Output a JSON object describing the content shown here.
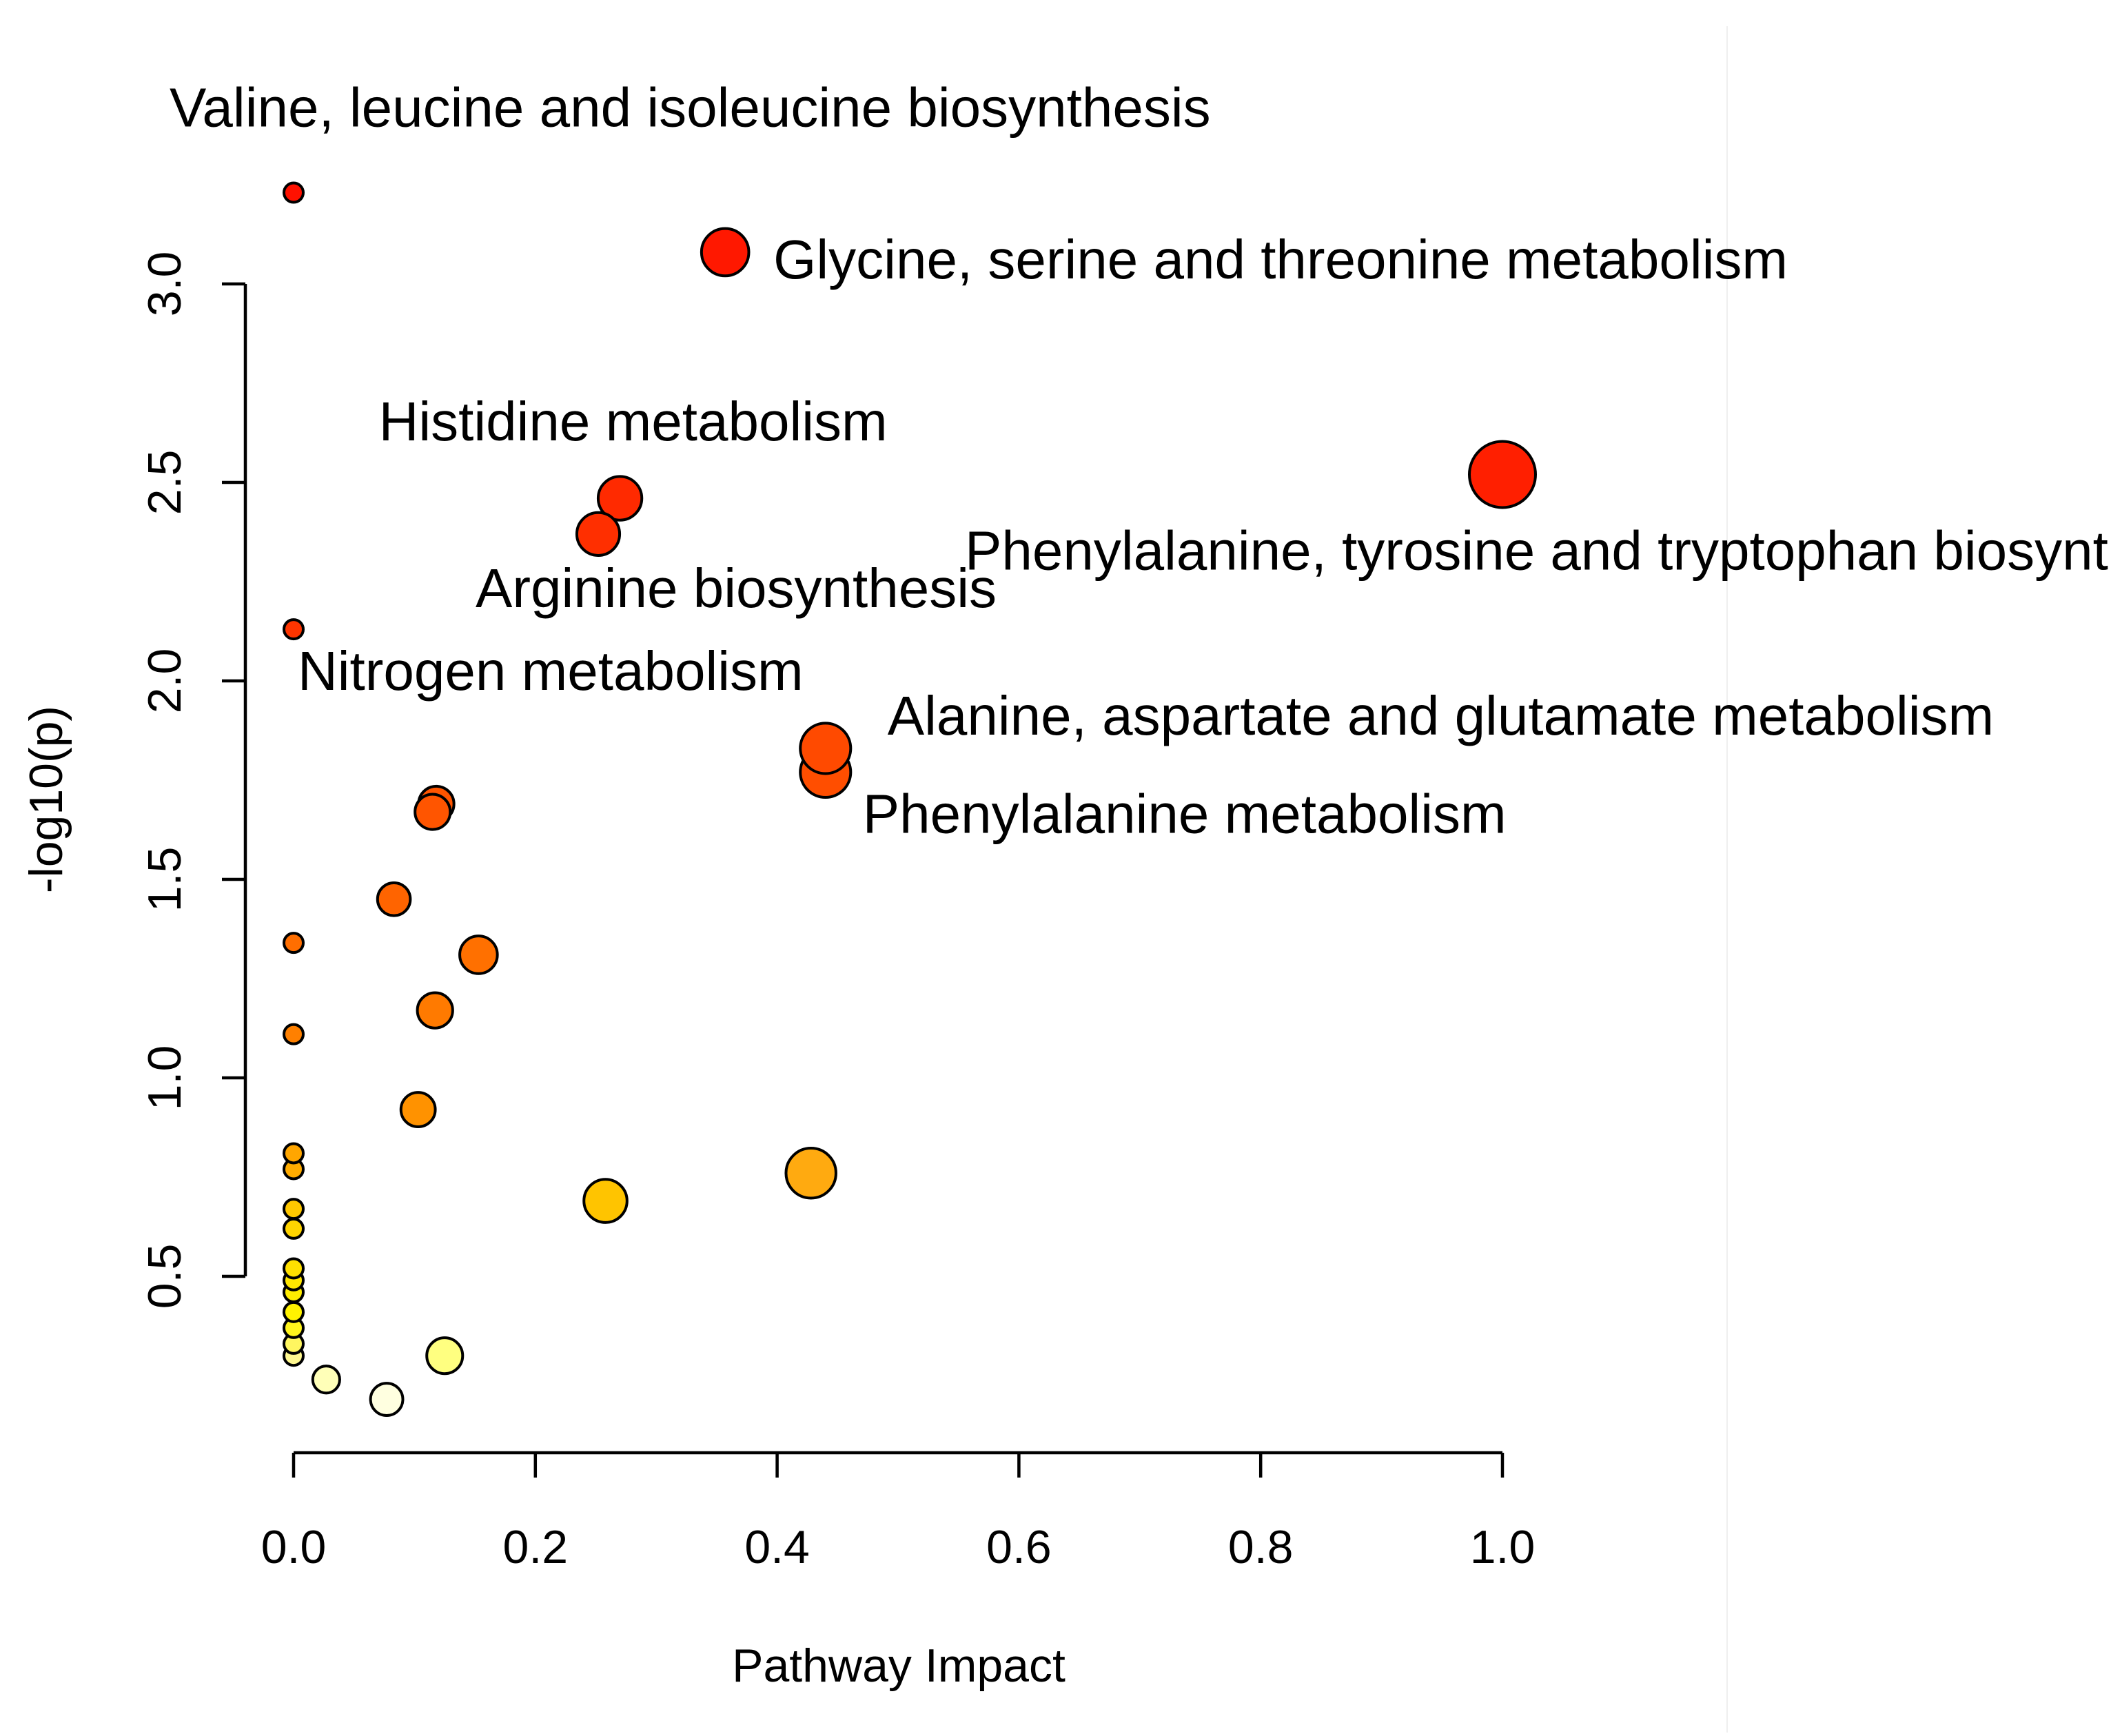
{
  "chart_data": {
    "type": "scatter",
    "xlabel": "Pathway Impact",
    "ylabel": "-log10(p)",
    "xlim": [
      0,
      1
    ],
    "ylim": [
      0.15,
      3.25
    ],
    "x_ticks": [
      "0.0",
      "0.2",
      "0.4",
      "0.6",
      "0.8",
      "1.0"
    ],
    "x_tick_values": [
      0,
      0.2,
      0.4,
      0.6,
      0.8,
      1.0
    ],
    "y_ticks": [
      "0.5",
      "1.0",
      "1.5",
      "2.0",
      "2.5",
      "3.0"
    ],
    "y_tick_values": [
      0.5,
      1.0,
      1.5,
      2.0,
      2.5,
      3.0
    ],
    "size_encodes": "Pathway Impact",
    "color_encodes": "-log10(p)",
    "points": [
      {
        "x": 0.0,
        "y": 3.23,
        "label": "Valine, leucine and isoleucine biosynthesis",
        "color": "#ff1100"
      },
      {
        "x": 0.357,
        "y": 3.08,
        "label": "Glycine, serine and threonine metabolism",
        "color": "#ff1800"
      },
      {
        "x": 1.0,
        "y": 2.52,
        "label": "Phenylalanine, tyrosine and tryptophan biosynthesis",
        "color": "#ff1f00"
      },
      {
        "x": 0.27,
        "y": 2.46,
        "label": "Histidine metabolism",
        "color": "#ff2a00"
      },
      {
        "x": 0.252,
        "y": 2.37,
        "label": "Arginine biosynthesis",
        "color": "#ff2f00"
      },
      {
        "x": 0.0,
        "y": 2.13,
        "label": "Nitrogen metabolism",
        "color": "#ff3500"
      },
      {
        "x": 0.44,
        "y": 1.83,
        "label": "Alanine, aspartate and glutamate metabolism",
        "color": "#ff4a00"
      },
      {
        "x": 0.44,
        "y": 1.77,
        "label": "Phenylalanine metabolism",
        "color": "#ff4e00"
      },
      {
        "x": 0.118,
        "y": 1.69,
        "label": "",
        "color": "#ff5500"
      },
      {
        "x": 0.115,
        "y": 1.67,
        "label": "",
        "color": "#ff5500"
      },
      {
        "x": 0.083,
        "y": 1.45,
        "label": "",
        "color": "#ff6400"
      },
      {
        "x": 0.0,
        "y": 1.34,
        "label": "",
        "color": "#ff6e00"
      },
      {
        "x": 0.153,
        "y": 1.31,
        "label": "",
        "color": "#ff7000"
      },
      {
        "x": 0.117,
        "y": 1.17,
        "label": "",
        "color": "#ff7a00"
      },
      {
        "x": 0.0,
        "y": 1.11,
        "label": "",
        "color": "#ff8000"
      },
      {
        "x": 0.103,
        "y": 0.92,
        "label": "",
        "color": "#ff9200"
      },
      {
        "x": 0.0,
        "y": 0.81,
        "label": "",
        "color": "#ffa600"
      },
      {
        "x": 0.0,
        "y": 0.77,
        "label": "",
        "color": "#ffac00"
      },
      {
        "x": 0.428,
        "y": 0.76,
        "label": "",
        "color": "#ffaa10"
      },
      {
        "x": 0.258,
        "y": 0.69,
        "label": "",
        "color": "#ffc400"
      },
      {
        "x": 0.0,
        "y": 0.67,
        "label": "",
        "color": "#ffc800"
      },
      {
        "x": 0.0,
        "y": 0.62,
        "label": "",
        "color": "#ffd400"
      },
      {
        "x": 0.0,
        "y": 0.52,
        "label": "",
        "color": "#ffe000"
      },
      {
        "x": 0.0,
        "y": 0.49,
        "label": "",
        "color": "#ffe600"
      },
      {
        "x": 0.0,
        "y": 0.46,
        "label": "",
        "color": "#ffec00"
      },
      {
        "x": 0.0,
        "y": 0.41,
        "label": "",
        "color": "#fff200"
      },
      {
        "x": 0.0,
        "y": 0.37,
        "label": "",
        "color": "#fff41c"
      },
      {
        "x": 0.0,
        "y": 0.33,
        "label": "",
        "color": "#fff660"
      },
      {
        "x": 0.0,
        "y": 0.3,
        "label": "",
        "color": "#fff890"
      },
      {
        "x": 0.125,
        "y": 0.3,
        "label": "",
        "color": "#ffff80"
      },
      {
        "x": 0.027,
        "y": 0.24,
        "label": "",
        "color": "#ffffb8"
      },
      {
        "x": 0.077,
        "y": 0.19,
        "label": "",
        "color": "#ffffe0"
      }
    ]
  }
}
